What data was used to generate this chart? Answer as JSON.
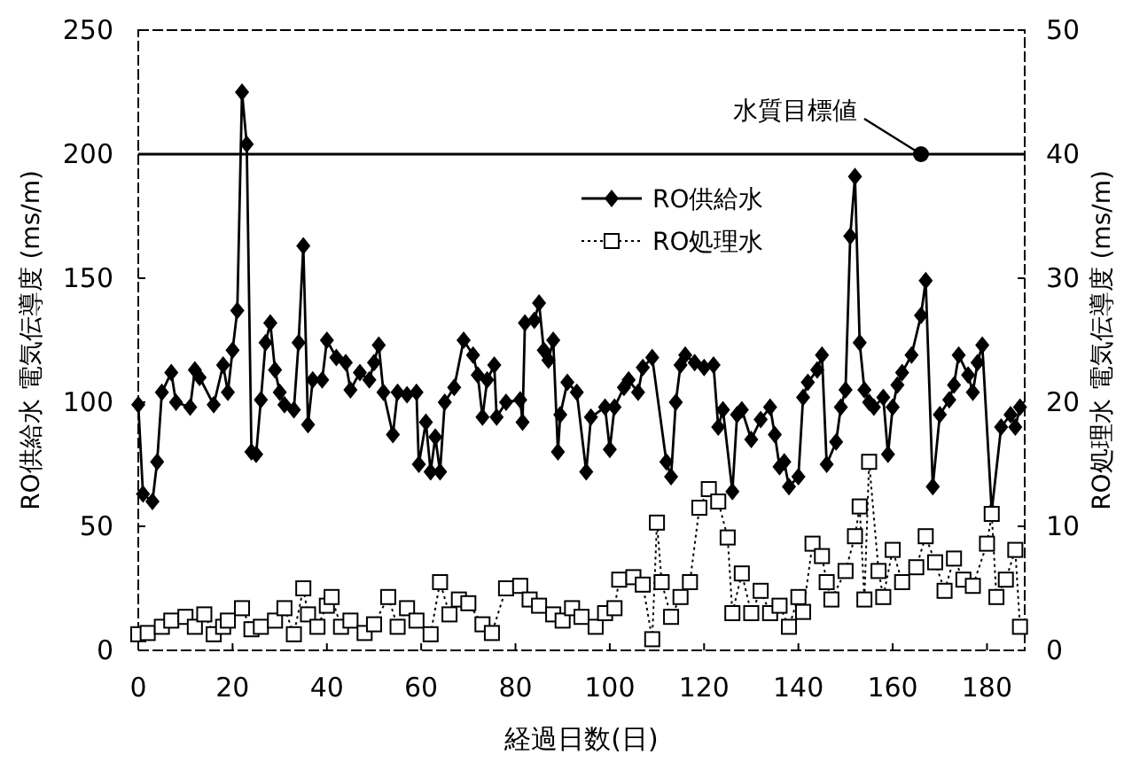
{
  "chart_data": {
    "type": "line",
    "xlabel": "経過日数(日)",
    "ylabel": "RO供給水 電気伝導度 (ms/m)",
    "y2label": "RO処理水 電気伝導度 (ms/m)",
    "xlim": [
      0,
      188
    ],
    "xticks": [
      0,
      20,
      40,
      60,
      80,
      100,
      120,
      140,
      160,
      180
    ],
    "ylim": [
      0,
      250
    ],
    "yticks": [
      0,
      50,
      100,
      150,
      200,
      250
    ],
    "y2lim": [
      0,
      50
    ],
    "y2ticks": [
      0,
      10,
      20,
      30,
      40,
      50
    ],
    "grid": false,
    "legend": "top right",
    "ref_lines": [
      {
        "axis": "y",
        "value": 200,
        "color": "#000000"
      }
    ],
    "annotations": [
      {
        "text": "水質目標値",
        "x": 166,
        "y": 200
      }
    ],
    "series": [
      {
        "name": "RO供給水",
        "color": "#000000",
        "marker": "diamond",
        "line_style": "solid",
        "x": [
          0,
          1,
          3,
          4,
          5,
          7,
          8,
          11,
          12,
          13,
          16,
          18,
          19,
          20,
          21,
          22,
          23,
          24,
          25,
          26,
          27,
          28,
          29,
          30,
          31,
          33,
          34,
          35,
          36,
          37,
          39,
          40,
          42,
          44,
          45,
          47,
          49,
          50,
          51,
          52,
          54,
          55,
          57,
          59,
          59.5,
          61,
          62,
          63,
          64,
          65,
          67,
          69,
          71,
          72,
          73,
          74,
          75.5,
          76,
          78,
          81,
          81.5,
          82,
          84,
          85,
          86,
          87,
          88,
          89,
          89.5,
          91,
          93,
          95,
          96,
          99,
          100,
          101,
          103,
          104,
          106,
          107,
          109,
          112,
          113,
          114,
          115,
          116,
          118,
          120,
          122,
          123,
          124,
          126,
          127,
          128,
          130,
          132,
          134,
          135,
          136,
          137,
          138,
          140,
          141,
          142,
          144,
          145,
          146,
          148,
          149,
          150,
          151,
          152,
          153,
          154,
          155,
          156,
          158,
          159,
          160,
          161,
          162,
          164,
          166,
          167,
          168.5,
          170,
          172,
          173,
          174,
          176,
          177,
          178,
          179,
          181,
          183,
          185,
          186,
          187
        ],
        "values": [
          99,
          63,
          60,
          76,
          104,
          112,
          100,
          98,
          113,
          110,
          99,
          115,
          104,
          121,
          137,
          225,
          204,
          80,
          79,
          101,
          124,
          132,
          113,
          104,
          99,
          97,
          124,
          163,
          91,
          109,
          109,
          125,
          118,
          116,
          105,
          112,
          109,
          116,
          123,
          104,
          87,
          104,
          103,
          104,
          75,
          92,
          72,
          86,
          72,
          100,
          106,
          125,
          119,
          111,
          94,
          109,
          115,
          94,
          100,
          101,
          92,
          132,
          133,
          140,
          121,
          117,
          125,
          80,
          95,
          108,
          104,
          72,
          94,
          98,
          81,
          98,
          106,
          109,
          104,
          114,
          118,
          76,
          70,
          100,
          115,
          119,
          116,
          114,
          115,
          90,
          97,
          64,
          95,
          97,
          85,
          93,
          98,
          87,
          74,
          76,
          66,
          70,
          102,
          108,
          113,
          119,
          75,
          84,
          98,
          105,
          167,
          191,
          124,
          105,
          100,
          98,
          102,
          79,
          98,
          107,
          112,
          119,
          135,
          149,
          66,
          95,
          101,
          107,
          119,
          111,
          104,
          116,
          123,
          56,
          90,
          95,
          90,
          98
        ]
      },
      {
        "name": "RO処理水",
        "color": "#000000",
        "marker": "square",
        "line_style": "dotted",
        "axis": "y2",
        "x": [
          0,
          2,
          5,
          7,
          10,
          12,
          14,
          16,
          18,
          19,
          22,
          24,
          26,
          29,
          31,
          33,
          35,
          36,
          38,
          40,
          41,
          43,
          45,
          48,
          50,
          53,
          55,
          57,
          59,
          62,
          64,
          66,
          68,
          70,
          73,
          75,
          78,
          81,
          83,
          85,
          88,
          90,
          92,
          94,
          97,
          99,
          101,
          102,
          105,
          107,
          109,
          110,
          111,
          113,
          115,
          117,
          119,
          121,
          123,
          125,
          126,
          128,
          130,
          132,
          134,
          136,
          138,
          140,
          141,
          143,
          145,
          146,
          147,
          150,
          152,
          153,
          154,
          155,
          157,
          158,
          160,
          162,
          165,
          167,
          169,
          171,
          173,
          175,
          177,
          180,
          181,
          182,
          184,
          186,
          187
        ],
        "values": [
          1.3,
          1.4,
          1.9,
          2.4,
          2.7,
          1.9,
          2.9,
          1.3,
          1.9,
          2.4,
          3.4,
          1.7,
          1.9,
          2.4,
          3.4,
          1.3,
          5.0,
          2.9,
          1.9,
          3.6,
          4.3,
          1.9,
          2.4,
          1.4,
          2.1,
          4.3,
          1.9,
          3.4,
          2.4,
          1.3,
          5.5,
          2.9,
          4.1,
          3.8,
          2.1,
          1.4,
          5.0,
          5.2,
          4.1,
          3.6,
          2.9,
          2.4,
          3.4,
          2.7,
          1.9,
          3.0,
          3.4,
          5.7,
          5.9,
          5.3,
          0.9,
          10.3,
          5.5,
          2.7,
          4.3,
          5.5,
          11.5,
          13.0,
          12.0,
          9.1,
          3.0,
          6.2,
          3.0,
          4.8,
          3.0,
          3.6,
          1.9,
          4.3,
          3.1,
          8.6,
          7.6,
          5.5,
          4.1,
          6.4,
          9.2,
          11.6,
          4.1,
          15.2,
          6.4,
          4.3,
          8.1,
          5.5,
          6.7,
          9.2,
          7.1,
          4.8,
          7.4,
          5.7,
          5.2,
          8.6,
          11.0,
          4.3,
          5.7,
          8.1,
          1.9
        ]
      }
    ]
  }
}
